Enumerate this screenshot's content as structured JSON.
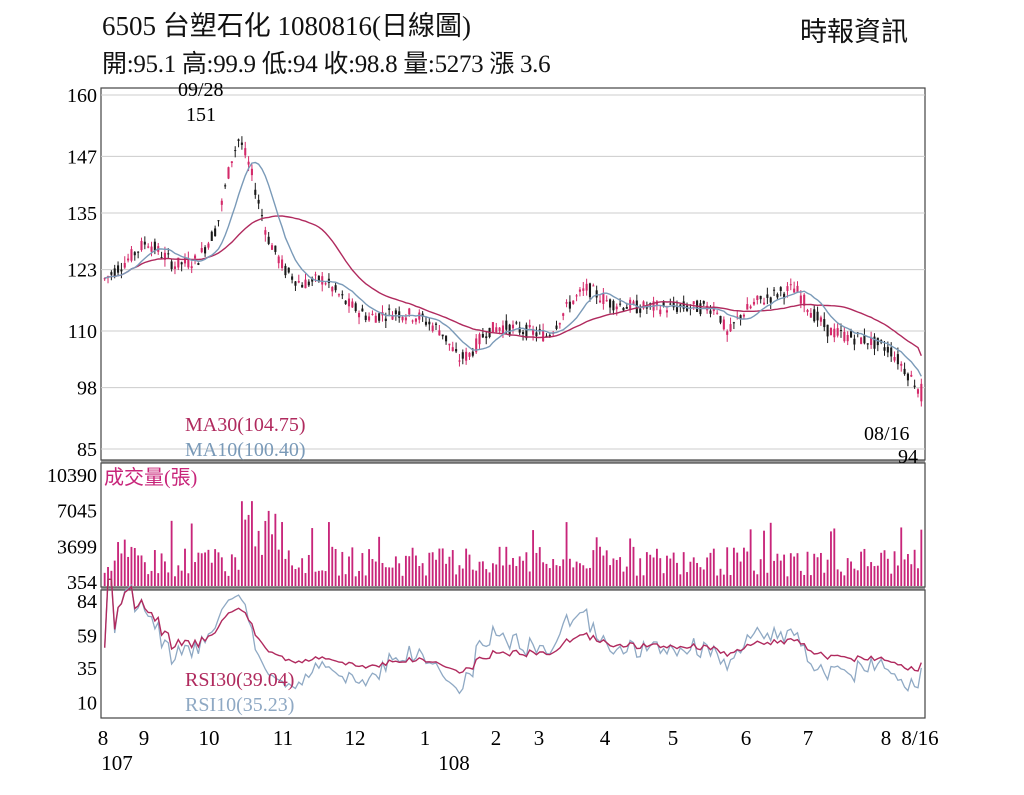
{
  "header": {
    "title": "6505  台塑石化 1080816(日線圖)",
    "summary": "開:95.1 高:99.9 低:94 收:98.8 量:5273 漲 3.6",
    "source": "時報資訊"
  },
  "colors": {
    "candle_up": "#d42a6a",
    "candle_down": "#1a1a1a",
    "ma30": "#b02a5e",
    "ma10": "#7a9ab8",
    "volume": "#c8257a",
    "rsi30": "#b02a5e",
    "rsi10": "#8fa9c4",
    "grid": "#cccccc",
    "border": "#444444"
  },
  "chart_data": [
    {
      "type": "candlestick",
      "ylim": [
        85,
        160
      ],
      "yticks": [
        160,
        147,
        135,
        123,
        110,
        98,
        85
      ],
      "grid": true,
      "annotations": [
        {
          "date": "09/28",
          "value": "151"
        },
        {
          "date": "08/16",
          "value": "94"
        }
      ],
      "legend": [
        {
          "label": "MA30(104.75)",
          "series": "MA30"
        },
        {
          "label": "MA10(100.40)",
          "series": "MA10"
        }
      ],
      "series": [
        {
          "name": "MA30",
          "last": 104.75
        },
        {
          "name": "MA10",
          "last": 100.4
        }
      ],
      "last_bar": {
        "open": 95.1,
        "high": 99.9,
        "low": 94,
        "close": 98.8
      }
    },
    {
      "type": "bar",
      "ylabel": "成交量(張)",
      "ylim": [
        0,
        10390
      ],
      "yticks": [
        10390,
        7045,
        3699,
        354
      ],
      "last_value": 5273
    },
    {
      "type": "line",
      "ylim": [
        0,
        90
      ],
      "yticks": [
        84,
        59,
        35,
        10
      ],
      "legend": [
        {
          "label": "RSI30(39.04)",
          "series": "RSI30"
        },
        {
          "label": "RSI10(35.23)",
          "series": "RSI10"
        }
      ],
      "series": [
        {
          "name": "RSI30",
          "last": 39.04
        },
        {
          "name": "RSI10",
          "last": 35.23
        }
      ]
    }
  ],
  "xaxis": {
    "months": [
      "8",
      "9",
      "10",
      "11",
      "12",
      "1",
      "2",
      "3",
      "4",
      "5",
      "6",
      "7",
      "8",
      "8/16"
    ],
    "years": [
      "107",
      "108"
    ]
  }
}
